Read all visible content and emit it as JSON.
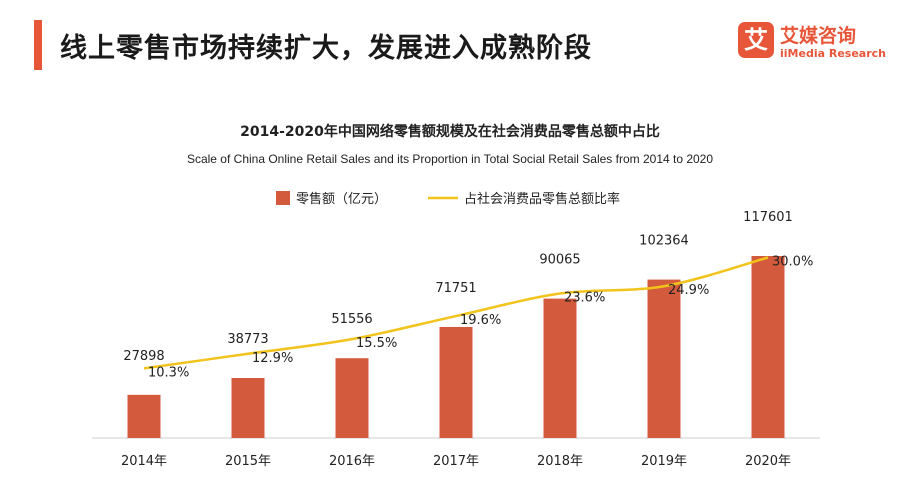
{
  "header": {
    "title": "线上零售市场持续扩大，发展进入成熟阶段"
  },
  "logo": {
    "mark": "艾",
    "name_cn": "艾媒咨询",
    "name_en": "iiMedia Research"
  },
  "colors": {
    "accent": "#e8563a",
    "bar": "#d35a3c",
    "line": "#f2c31b"
  },
  "chart_data": {
    "type": "bar",
    "title": "2014-2020年中国网络零售额规模及在社会消费品零售总额中占比",
    "subtitle": "Scale of China Online Retail Sales and its Proportion in Total Social Retail Sales from 2014 to 2020",
    "categories": [
      "2014年",
      "2015年",
      "2016年",
      "2017年",
      "2018年",
      "2019年",
      "2020年"
    ],
    "series": [
      {
        "name": "零售额（亿元）",
        "type": "bar",
        "values": [
          27898,
          38773,
          51556,
          71751,
          90065,
          102364,
          117601
        ],
        "labels": [
          "27898",
          "38773",
          "51556",
          "71751",
          "90065",
          "102364",
          "117601"
        ]
      },
      {
        "name": "占社会消费品零售总额比率",
        "type": "line",
        "values": [
          10.3,
          12.9,
          15.5,
          19.6,
          23.6,
          24.9,
          30.0
        ],
        "labels": [
          "10.3%",
          "12.9%",
          "15.5%",
          "19.6%",
          "23.6%",
          "24.9%",
          "30.0%"
        ]
      }
    ],
    "legend_position": "top-left",
    "grid": false
  }
}
